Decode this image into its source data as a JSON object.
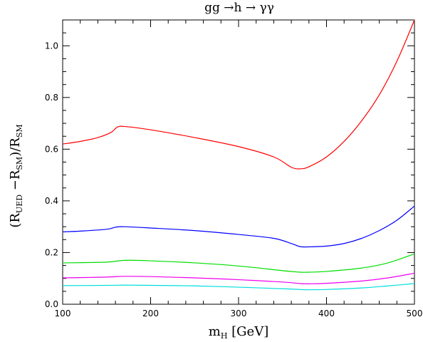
{
  "chart_data": {
    "type": "line",
    "title": "gg →h → γγ",
    "xlabel": {
      "main": "m",
      "sub": "H",
      "unit": " [GeV]"
    },
    "ylabel": {
      "parts": [
        "(R",
        "UED",
        " −R",
        "SM",
        ")/R",
        "SM"
      ]
    },
    "xlim": [
      100,
      500
    ],
    "ylim": [
      0,
      1.1
    ],
    "xticks": [
      100,
      200,
      300,
      400,
      500
    ],
    "xtick_labels": [
      "100",
      "200",
      "300",
      "400",
      "500"
    ],
    "yticks": [
      0.0,
      0.2,
      0.4,
      0.6,
      0.8,
      1.0
    ],
    "ytick_labels": [
      "0.0",
      "0.2",
      "0.4",
      "0.6",
      "0.8",
      "1.0"
    ],
    "grid": false,
    "legend": "none",
    "series": [
      {
        "color": "#ff0000",
        "x": [
          100,
          120,
          140,
          155,
          162,
          170,
          200,
          250,
          300,
          340,
          360,
          370,
          380,
          400,
          420,
          440,
          460,
          480,
          500
        ],
        "y": [
          0.62,
          0.63,
          0.645,
          0.665,
          0.685,
          0.688,
          0.675,
          0.645,
          0.61,
          0.57,
          0.53,
          0.524,
          0.532,
          0.57,
          0.63,
          0.71,
          0.81,
          0.94,
          1.1
        ]
      },
      {
        "color": "#0000ff",
        "x": [
          100,
          120,
          150,
          160,
          170,
          200,
          250,
          300,
          340,
          360,
          370,
          380,
          400,
          420,
          440,
          460,
          480,
          500
        ],
        "y": [
          0.28,
          0.283,
          0.29,
          0.298,
          0.3,
          0.295,
          0.285,
          0.27,
          0.255,
          0.235,
          0.223,
          0.222,
          0.225,
          0.235,
          0.255,
          0.285,
          0.325,
          0.38
        ]
      },
      {
        "color": "#00dd00",
        "x": [
          100,
          150,
          170,
          200,
          250,
          300,
          350,
          370,
          380,
          400,
          440,
          470,
          500
        ],
        "y": [
          0.16,
          0.163,
          0.17,
          0.168,
          0.16,
          0.148,
          0.13,
          0.124,
          0.124,
          0.127,
          0.14,
          0.16,
          0.195
        ]
      },
      {
        "color": "#ee00ee",
        "x": [
          100,
          150,
          170,
          200,
          250,
          300,
          350,
          370,
          380,
          400,
          440,
          470,
          500
        ],
        "y": [
          0.102,
          0.105,
          0.108,
          0.107,
          0.102,
          0.095,
          0.086,
          0.08,
          0.079,
          0.081,
          0.09,
          0.102,
          0.12
        ]
      },
      {
        "color": "#00dddd",
        "x": [
          100,
          150,
          170,
          200,
          250,
          300,
          350,
          370,
          380,
          400,
          440,
          470,
          500
        ],
        "y": [
          0.072,
          0.073,
          0.074,
          0.073,
          0.071,
          0.066,
          0.06,
          0.057,
          0.056,
          0.057,
          0.063,
          0.071,
          0.08
        ]
      }
    ]
  }
}
